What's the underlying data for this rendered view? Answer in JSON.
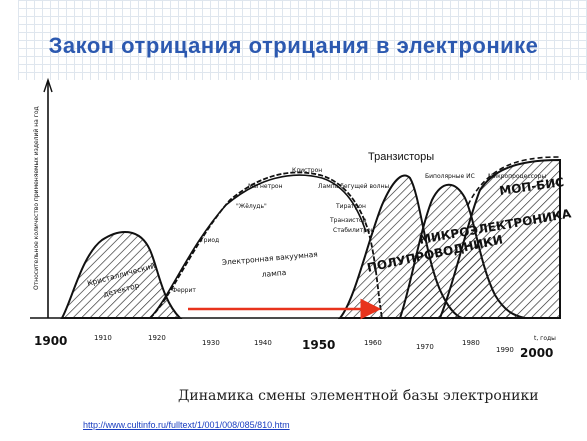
{
  "title": "Закон отрицания отрицания в электронике",
  "caption": "Динамика смены элементной базы электроники",
  "link": "http://www.cultinfo.ru/fulltext/1/001/008/085/810.htm",
  "diagram": {
    "y_axis_label": "Относительное количество применяемых изделий на год",
    "transistors_label": "Транзисторы",
    "phases": {
      "crystal": "Кристаллический детектор",
      "vacuum": "Электронная вакуумная лампа",
      "semi": "Полупроводники",
      "micro": "Микроэлектроника",
      "mos": "МОП-БИС"
    },
    "milestones": {
      "ferrite": "Феррит",
      "triode": "Триод",
      "thyratron": "\"Жёлудь\"",
      "magnetron": "Магнетрон",
      "klystron": "Клистрон",
      "lamp": "Лампа бегущей волны",
      "tube": "Тиратрон",
      "stabilitron": "Стабилитрон",
      "transistor_small": "Транзистор",
      "bipolar": "Биполярные ИС",
      "microprocessors": "Микропроцессоры"
    },
    "x_ticks": {
      "t1900": "1900",
      "t1910": "1910",
      "t1920": "1920",
      "t1930": "1930",
      "t1940": "1940",
      "t1950": "1950",
      "t1960": "1960",
      "t1970": "1970",
      "t1980": "1980",
      "t1990": "1990",
      "t2000": "2000"
    },
    "x_unit": "t, годы",
    "arrow_color": "#e8331c"
  }
}
